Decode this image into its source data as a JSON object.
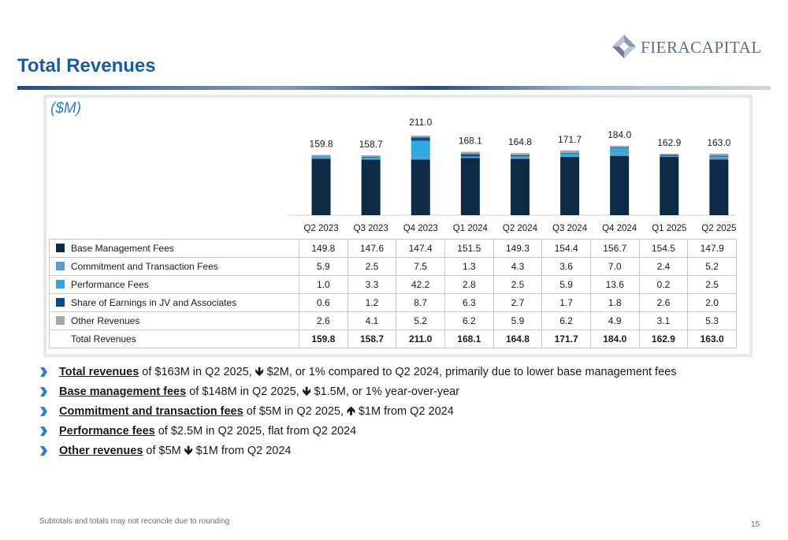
{
  "header": {
    "title": "Total Revenues"
  },
  "logo": {
    "text": "FIERACAPITAL",
    "icon": "diamond-logo-icon"
  },
  "panel": {
    "unit": "($M)"
  },
  "colors": {
    "title": "#1f5a99",
    "base_management": "#0d2b47",
    "commitment_transaction": "#5b9bd5",
    "performance": "#2ea8e0",
    "share_of_earnings": "#0b4a8c",
    "other": "#a6a6a6",
    "chevron": "#2e7fcf"
  },
  "chart_data": {
    "type": "bar",
    "stacked": true,
    "categories": [
      "Q2 2023",
      "Q3 2023",
      "Q4 2023",
      "Q1 2024",
      "Q2 2024",
      "Q3 2024",
      "Q4 2024",
      "Q1 2025",
      "Q2 2025"
    ],
    "series": [
      {
        "name": "Base Management Fees",
        "values": [
          149.8,
          147.6,
          147.4,
          151.5,
          149.3,
          154.4,
          156.7,
          154.5,
          147.9
        ],
        "display": [
          "149.8",
          "147.6",
          "147.4",
          "151.5",
          "149.3",
          "154.4",
          "156.7",
          "154.5",
          "147.9"
        ]
      },
      {
        "name": "Commitment and Transaction Fees",
        "values": [
          5.9,
          2.5,
          7.5,
          1.3,
          4.3,
          3.6,
          7.0,
          2.4,
          5.2
        ],
        "display": [
          "5.9",
          "2.5",
          "7.5",
          "1.3",
          "4.3",
          "3.6",
          "7.0",
          "2.4",
          "5.2"
        ]
      },
      {
        "name": "Performance Fees",
        "values": [
          1.0,
          3.3,
          42.2,
          2.8,
          2.5,
          5.9,
          13.6,
          0.2,
          2.5
        ],
        "display": [
          "1.0",
          "3.3",
          "42.2",
          "2.8",
          "2.5",
          "5.9",
          "13.6",
          "0.2",
          "2.5"
        ]
      },
      {
        "name": "Share of Earnings in JV and Associates",
        "values": [
          0.6,
          1.2,
          8.7,
          6.3,
          2.7,
          1.7,
          1.8,
          2.6,
          2.0
        ],
        "display": [
          "0.6",
          "1.2",
          "8.7",
          "6.3",
          "2.7",
          "1.7",
          "1.8",
          "2.6",
          "2.0"
        ]
      },
      {
        "name": "Other Revenues",
        "values": [
          2.6,
          4.1,
          5.2,
          6.2,
          5.9,
          6.2,
          4.9,
          3.1,
          5.3
        ],
        "display": [
          "2.6",
          "4.1",
          "5.2",
          "6.2",
          "5.9",
          "6.2",
          "4.9",
          "3.1",
          "5.3"
        ]
      }
    ],
    "totals_label": "Total Revenues",
    "totals": [
      159.8,
      158.7,
      211.0,
      168.1,
      164.8,
      171.7,
      184.0,
      162.9,
      163.0
    ],
    "totals_display": [
      "159.8",
      "158.7",
      "211.0",
      "168.1",
      "164.8",
      "171.7",
      "184.0",
      "162.9",
      "163.0"
    ],
    "ylim": [
      0,
      211.0
    ],
    "xlabel": "",
    "ylabel": "",
    "grid": false,
    "legend": "table-below"
  },
  "bullets": [
    {
      "lead": "Total revenues",
      "segments": [
        {
          "t": " of $163M in Q2 2025, "
        },
        {
          "t": "🡻",
          "arrow": true
        },
        {
          "t": " $2M, or 1% compared to Q2 2024, primarily due to lower base management fees"
        }
      ]
    },
    {
      "lead": "Base management fees",
      "segments": [
        {
          "t": " of $148M in Q2 2025, "
        },
        {
          "t": "🡻",
          "arrow": true
        },
        {
          "t": " $1.5M, or 1% year-over-year"
        }
      ]
    },
    {
      "lead": "Commitment and transaction fees",
      "segments": [
        {
          "t": " of $5M in Q2 2025, "
        },
        {
          "t": "🡹",
          "arrow": true
        },
        {
          "t": " $1M from Q2 2024"
        }
      ]
    },
    {
      "lead": "Performance fees",
      "segments": [
        {
          "t": " of $2.5M in Q2 2025, flat from Q2 2024"
        }
      ]
    },
    {
      "lead": "Other revenues",
      "segments": [
        {
          "t": " of $5M "
        },
        {
          "t": "🡻",
          "arrow": true
        },
        {
          "t": " $1M from Q2 2024"
        }
      ]
    }
  ],
  "footer": {
    "note": "Subtotals and totals may not reconcile due to rounding",
    "page": "15"
  }
}
